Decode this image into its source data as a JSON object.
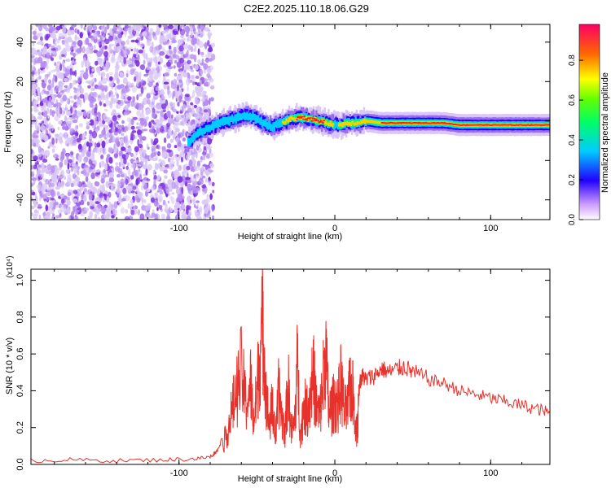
{
  "title": "C2E2.2025.110.18.06.G29",
  "chart_data": [
    {
      "type": "heatmap",
      "xlabel": "Height of straight line (km)",
      "ylabel": "Frequency (Hz)",
      "xlim": [
        -195,
        138
      ],
      "ylim": [
        -50,
        49
      ],
      "xticks": [
        -100,
        0,
        100
      ],
      "yticks": [
        -40,
        -20,
        0,
        20,
        40
      ],
      "colorbar": {
        "label": "Normalized spectral amplitude",
        "range": [
          0,
          0.98
        ],
        "ticks": [
          "0.0",
          "0.2",
          "0.4",
          "0.6",
          "0.8"
        ]
      },
      "noise_region": {
        "x_start": -195,
        "x_end": -78
      },
      "ridge": {
        "x": [
          -94,
          -88,
          -82,
          -76,
          -70,
          -64,
          -58,
          -52,
          -46,
          -40,
          -34,
          -28,
          -22,
          -16,
          -10,
          -4,
          0,
          4,
          8,
          14,
          20,
          30,
          40,
          50,
          60,
          70,
          80,
          100,
          120,
          138
        ],
        "y": [
          -11,
          -6,
          -4,
          -2,
          0,
          1,
          3,
          2,
          -1,
          -3,
          -1,
          1,
          2,
          1,
          0,
          -1,
          -2,
          -2,
          -1,
          -1,
          0,
          -1,
          -1,
          -1,
          -1,
          -1,
          -2,
          -2,
          -2,
          -2
        ],
        "amplitude": [
          0.2,
          0.25,
          0.3,
          0.35,
          0.4,
          0.4,
          0.45,
          0.4,
          0.45,
          0.5,
          0.55,
          0.7,
          0.9,
          0.98,
          0.9,
          0.7,
          0.5,
          0.6,
          0.65,
          0.7,
          0.75,
          0.8,
          0.82,
          0.85,
          0.88,
          0.9,
          0.95,
          0.96,
          0.97,
          0.98
        ]
      }
    },
    {
      "type": "line",
      "xlabel": "Height of straight line (km)",
      "ylabel": "SNR (10 * v/v)",
      "y_multiplier": "(x10⁴)",
      "xlim": [
        -195,
        138
      ],
      "ylim": [
        0,
        1.06
      ],
      "xticks": [
        -100,
        0,
        100
      ],
      "yticks": [
        "0.0",
        "0.2",
        "0.4",
        "0.6",
        "0.8",
        "1.0"
      ],
      "series": [
        {
          "color": "#e8312a",
          "x": [
            -195,
            -170,
            -140,
            -110,
            -90,
            -80,
            -75,
            -70,
            -67,
            -64,
            -60,
            -57,
            -54,
            -52,
            -50,
            -48,
            -46,
            -44,
            -42,
            -40,
            -38,
            -36,
            -34,
            -32,
            -30,
            -28,
            -26,
            -24,
            -22,
            -20,
            -18,
            -16,
            -14,
            -12,
            -10,
            -8,
            -6,
            -4,
            -2,
            0,
            2,
            4,
            6,
            8,
            10,
            12,
            14,
            16,
            18,
            20,
            25,
            30,
            35,
            40,
            45,
            50,
            60,
            70,
            80,
            90,
            100,
            110,
            120,
            130,
            138
          ],
          "y": [
            0.02,
            0.025,
            0.02,
            0.025,
            0.03,
            0.04,
            0.08,
            0.2,
            0.35,
            0.5,
            0.7,
            0.45,
            0.6,
            0.3,
            0.55,
            0.85,
            1.05,
            0.5,
            0.3,
            0.45,
            0.2,
            0.55,
            0.35,
            0.25,
            0.6,
            0.25,
            0.3,
            0.75,
            0.2,
            0.45,
            0.4,
            0.5,
            0.7,
            0.45,
            0.35,
            0.55,
            0.88,
            0.4,
            0.42,
            0.48,
            0.45,
            0.62,
            0.4,
            0.4,
            0.6,
            0.5,
            0.25,
            0.45,
            0.48,
            0.46,
            0.48,
            0.52,
            0.5,
            0.52,
            0.53,
            0.5,
            0.46,
            0.44,
            0.4,
            0.38,
            0.36,
            0.34,
            0.32,
            0.3,
            0.28
          ]
        }
      ]
    }
  ],
  "colors": {
    "line": "#e8312a",
    "noise_purple": "#7b2fe0",
    "noise_light": "#d9c7f5"
  }
}
